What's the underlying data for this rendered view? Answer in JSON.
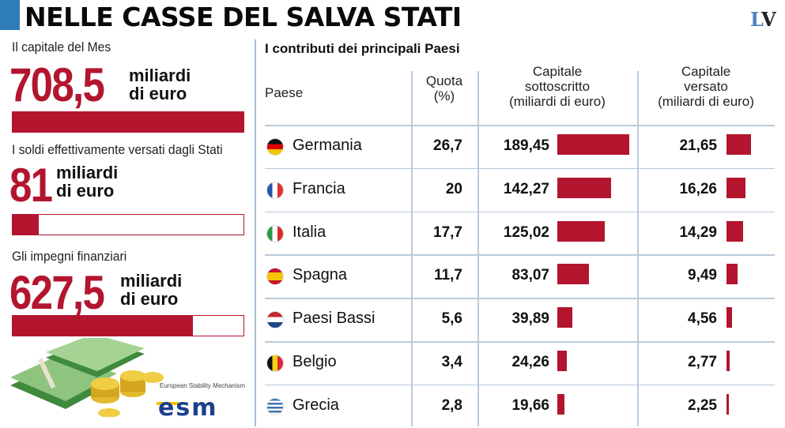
{
  "header": {
    "title": "NELLE CASSE DEL SALVA STATI",
    "logo": "LV"
  },
  "left": {
    "blocks": [
      {
        "label": "Il capitale del Mes",
        "value": "708,5",
        "unit1": "miliardi",
        "unit2": "di euro",
        "fill": 1.0
      },
      {
        "label": "I soldi effettivamente versati dagli Stati",
        "value": "81",
        "unit1": "miliardi",
        "unit2": "di euro",
        "fill": 0.114
      },
      {
        "label": "Gli impegni finanziari",
        "value": "627,5",
        "unit1": "miliardi",
        "unit2": "di euro",
        "fill": 0.78
      }
    ],
    "esm_caption": "European Stability Mechanism",
    "esm_logo": "esm"
  },
  "colors": {
    "accent": "#b3152f",
    "blue": "#2f7db8"
  },
  "chart_data": {
    "type": "table",
    "title": "I contributi dei principali Paesi",
    "columns": [
      "Paese",
      "Quota (%)",
      "Capitale sottoscritto (miliardi di euro)",
      "Capitale versato (miliardi di euro)"
    ],
    "headers": {
      "paese": "Paese",
      "quota": [
        "Quota",
        "(%)"
      ],
      "sott": [
        "Capitale",
        "sottoscritto",
        "(miliardi di euro)"
      ],
      "vers": [
        "Capitale",
        "versato",
        "(miliardi di euro)"
      ]
    },
    "rows": [
      {
        "country": "Germania",
        "flag": "de",
        "quota": "26,7",
        "sott": "189,45",
        "sott_v": 189.45,
        "vers": "21,65",
        "vers_v": 21.65
      },
      {
        "country": "Francia",
        "flag": "fr",
        "quota": "20",
        "sott": "142,27",
        "sott_v": 142.27,
        "vers": "16,26",
        "vers_v": 16.26
      },
      {
        "country": "Italia",
        "flag": "it",
        "quota": "17,7",
        "sott": "125,02",
        "sott_v": 125.02,
        "vers": "14,29",
        "vers_v": 14.29
      },
      {
        "country": "Spagna",
        "flag": "es",
        "quota": "11,7",
        "sott": "83,07",
        "sott_v": 83.07,
        "vers": "9,49",
        "vers_v": 9.49
      },
      {
        "country": "Paesi Bassi",
        "flag": "nl",
        "quota": "5,6",
        "sott": "39,89",
        "sott_v": 39.89,
        "vers": "4,56",
        "vers_v": 4.56
      },
      {
        "country": "Belgio",
        "flag": "be",
        "quota": "3,4",
        "sott": "24,26",
        "sott_v": 24.26,
        "vers": "2,77",
        "vers_v": 2.77
      },
      {
        "country": "Grecia",
        "flag": "gr",
        "quota": "2,8",
        "sott": "19,66",
        "sott_v": 19.66,
        "vers": "2,25",
        "vers_v": 2.25
      }
    ]
  }
}
